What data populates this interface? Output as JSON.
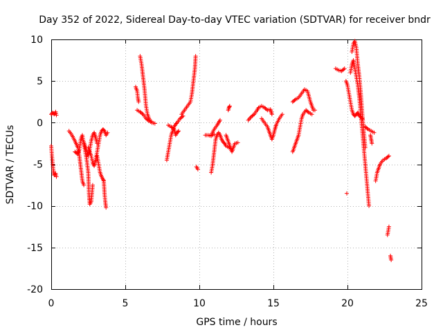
{
  "chart_data": {
    "type": "scatter",
    "title": "Day 352 of 2022, Sidereal Day-to-day VTEC variation (SDTVAR) for receiver bndr",
    "xlabel": "GPS time / hours",
    "ylabel": "SDTVAR / TECUs",
    "xlim": [
      0,
      25
    ],
    "ylim": [
      -20,
      10
    ],
    "x_ticks": [
      0,
      5,
      10,
      15,
      20,
      25
    ],
    "x_tick_labels": [
      "0",
      "5",
      "10",
      "15",
      "20",
      "25"
    ],
    "y_ticks": [
      -20,
      -15,
      -10,
      -5,
      0,
      5,
      10
    ],
    "y_tick_labels": [
      "-20",
      "-15",
      "-10",
      "-5",
      "0",
      "5",
      "10"
    ],
    "grid": true,
    "legend": "none",
    "marker": "+",
    "color": "#ff0000",
    "series": [
      {
        "segments": [
          [
            [
              0.0,
              1.0
            ],
            [
              0.1,
              1.2
            ],
            [
              0.2,
              1.0
            ],
            [
              0.3,
              1.3
            ],
            [
              0.35,
              0.9
            ]
          ],
          [
            [
              0.0,
              -2.8
            ],
            [
              0.05,
              -4.0
            ],
            [
              0.1,
              -5.0
            ],
            [
              0.15,
              -5.8
            ],
            [
              0.2,
              -6.3
            ],
            [
              0.3,
              -6.1
            ],
            [
              0.35,
              -6.5
            ]
          ],
          [
            [
              1.2,
              -1.0
            ],
            [
              1.4,
              -1.5
            ],
            [
              1.6,
              -2.2
            ],
            [
              1.8,
              -3.0
            ],
            [
              1.9,
              -4.0
            ],
            [
              2.0,
              -5.5
            ],
            [
              2.1,
              -7.0
            ],
            [
              2.2,
              -7.5
            ]
          ],
          [
            [
              1.6,
              -3.5
            ],
            [
              1.8,
              -3.8
            ],
            [
              1.9,
              -3.2
            ],
            [
              2.0,
              -2.0
            ],
            [
              2.1,
              -1.5
            ],
            [
              2.2,
              -2.5
            ],
            [
              2.3,
              -3.5
            ],
            [
              2.4,
              -4.5
            ],
            [
              2.5,
              -6.0
            ],
            [
              2.55,
              -8.5
            ],
            [
              2.6,
              -9.8
            ],
            [
              2.7,
              -9.5
            ],
            [
              2.8,
              -7.5
            ]
          ],
          [
            [
              2.2,
              -2.3
            ],
            [
              2.4,
              -3.5
            ],
            [
              2.5,
              -4.0
            ],
            [
              2.6,
              -3.2
            ],
            [
              2.7,
              -2.2
            ],
            [
              2.8,
              -1.5
            ],
            [
              2.9,
              -1.2
            ],
            [
              3.0,
              -1.8
            ],
            [
              3.1,
              -2.5
            ]
          ],
          [
            [
              2.5,
              -3.0
            ],
            [
              2.7,
              -4.0
            ],
            [
              2.8,
              -4.8
            ],
            [
              2.9,
              -5.2
            ],
            [
              3.0,
              -4.5
            ],
            [
              3.1,
              -3.5
            ],
            [
              3.2,
              -2.5
            ],
            [
              3.3,
              -1.5
            ],
            [
              3.4,
              -1.0
            ],
            [
              3.5,
              -0.8
            ],
            [
              3.6,
              -1.0
            ],
            [
              3.7,
              -1.5
            ],
            [
              3.8,
              -1.2
            ]
          ],
          [
            [
              3.1,
              -4.0
            ],
            [
              3.2,
              -5.0
            ],
            [
              3.3,
              -6.0
            ],
            [
              3.4,
              -6.5
            ],
            [
              3.5,
              -6.8
            ],
            [
              3.55,
              -7.0
            ],
            [
              3.6,
              -8.5
            ],
            [
              3.65,
              -9.5
            ],
            [
              3.7,
              -10.2
            ]
          ],
          [
            [
              5.7,
              4.3
            ],
            [
              5.8,
              3.8
            ],
            [
              5.85,
              3.0
            ],
            [
              5.9,
              2.5
            ]
          ],
          [
            [
              5.8,
              1.5
            ],
            [
              6.0,
              1.3
            ],
            [
              6.2,
              1.0
            ],
            [
              6.4,
              0.5
            ],
            [
              6.6,
              0.2
            ],
            [
              6.8,
              0.0
            ],
            [
              7.0,
              -0.1
            ]
          ],
          [
            [
              6.0,
              8.0
            ],
            [
              6.1,
              7.0
            ],
            [
              6.2,
              5.5
            ],
            [
              6.3,
              4.0
            ],
            [
              6.4,
              2.0
            ],
            [
              6.5,
              1.0
            ],
            [
              6.6,
              0.5
            ],
            [
              6.8,
              0.0
            ]
          ],
          [
            [
              7.8,
              -4.5
            ],
            [
              7.9,
              -3.5
            ],
            [
              8.0,
              -2.5
            ],
            [
              8.1,
              -1.5
            ],
            [
              8.2,
              -1.0
            ],
            [
              8.3,
              -0.5
            ],
            [
              8.4,
              -0.2
            ],
            [
              8.5,
              0.0
            ],
            [
              8.7,
              0.5
            ],
            [
              8.9,
              0.8
            ]
          ],
          [
            [
              7.9,
              -0.3
            ],
            [
              8.1,
              -0.5
            ],
            [
              8.3,
              -0.8
            ],
            [
              8.4,
              -1.5
            ],
            [
              8.5,
              -1.2
            ],
            [
              8.6,
              -1.0
            ]
          ],
          [
            [
              8.8,
              1.0
            ],
            [
              9.0,
              1.5
            ],
            [
              9.2,
              2.0
            ],
            [
              9.4,
              2.5
            ],
            [
              9.5,
              3.5
            ],
            [
              9.6,
              5.0
            ],
            [
              9.7,
              6.5
            ],
            [
              9.75,
              8.0
            ]
          ],
          [
            [
              9.8,
              -5.3
            ],
            [
              9.9,
              -5.6
            ]
          ],
          [
            [
              10.4,
              -1.5
            ],
            [
              10.6,
              -1.5
            ],
            [
              10.8,
              -1.6
            ],
            [
              11.0,
              -1.4
            ]
          ],
          [
            [
              10.8,
              -1.5
            ],
            [
              11.0,
              -0.8
            ],
            [
              11.2,
              -0.3
            ],
            [
              11.3,
              0.0
            ],
            [
              11.4,
              0.3
            ]
          ],
          [
            [
              10.8,
              -6.0
            ],
            [
              10.9,
              -5.0
            ],
            [
              11.0,
              -3.5
            ],
            [
              11.1,
              -2.0
            ],
            [
              11.2,
              -1.5
            ],
            [
              11.3,
              -1.2
            ],
            [
              11.4,
              -1.5
            ],
            [
              11.5,
              -2.0
            ],
            [
              11.6,
              -2.3
            ],
            [
              11.7,
              -2.5
            ],
            [
              11.8,
              -2.8
            ],
            [
              12.0,
              -3.0
            ],
            [
              12.2,
              -3.2
            ]
          ],
          [
            [
              11.8,
              -1.5
            ],
            [
              11.9,
              -2.0
            ],
            [
              12.0,
              -2.5
            ],
            [
              12.1,
              -3.0
            ],
            [
              12.2,
              -3.5
            ],
            [
              12.3,
              -3.0
            ],
            [
              12.4,
              -2.5
            ],
            [
              12.6,
              -2.4
            ]
          ],
          [
            [
              11.95,
              1.5
            ],
            [
              12.0,
              1.8
            ],
            [
              12.05,
              2.0
            ]
          ],
          [
            [
              13.3,
              0.3
            ],
            [
              13.5,
              0.7
            ],
            [
              13.7,
              1.0
            ],
            [
              13.9,
              1.5
            ],
            [
              14.0,
              1.8
            ],
            [
              14.2,
              2.0
            ],
            [
              14.4,
              1.8
            ],
            [
              14.6,
              1.5
            ],
            [
              14.8,
              1.6
            ],
            [
              14.9,
              1.0
            ]
          ],
          [
            [
              14.2,
              0.5
            ],
            [
              14.4,
              0.0
            ],
            [
              14.6,
              -0.5
            ],
            [
              14.8,
              -1.5
            ],
            [
              14.9,
              -2.0
            ],
            [
              15.0,
              -1.5
            ],
            [
              15.1,
              -0.8
            ],
            [
              15.2,
              -0.2
            ],
            [
              15.4,
              0.5
            ],
            [
              15.6,
              1.0
            ]
          ],
          [
            [
              16.3,
              2.5
            ],
            [
              16.5,
              2.8
            ],
            [
              16.7,
              3.0
            ],
            [
              16.9,
              3.5
            ],
            [
              17.1,
              4.0
            ],
            [
              17.3,
              3.8
            ],
            [
              17.5,
              2.5
            ],
            [
              17.6,
              2.0
            ],
            [
              17.7,
              1.5
            ],
            [
              17.8,
              1.5
            ]
          ],
          [
            [
              16.3,
              -3.5
            ],
            [
              16.5,
              -2.5
            ],
            [
              16.7,
              -1.5
            ],
            [
              16.8,
              -0.5
            ],
            [
              16.9,
              0.5
            ],
            [
              17.0,
              1.0
            ],
            [
              17.2,
              1.5
            ],
            [
              17.4,
              1.2
            ],
            [
              17.6,
              1.0
            ]
          ],
          [
            [
              19.2,
              6.5
            ],
            [
              19.4,
              6.3
            ],
            [
              19.6,
              6.2
            ],
            [
              19.8,
              6.5
            ]
          ],
          [
            [
              19.95,
              -8.5
            ]
          ],
          [
            [
              19.9,
              5.0
            ],
            [
              20.0,
              4.5
            ],
            [
              20.1,
              3.5
            ],
            [
              20.2,
              2.5
            ],
            [
              20.3,
              1.5
            ],
            [
              20.4,
              1.0
            ],
            [
              20.5,
              0.8
            ],
            [
              20.6,
              1.0
            ],
            [
              20.7,
              1.2
            ],
            [
              20.8,
              0.8
            ],
            [
              21.0,
              0.5
            ]
          ],
          [
            [
              20.2,
              6.0
            ],
            [
              20.3,
              7.0
            ],
            [
              20.4,
              7.5
            ],
            [
              20.5,
              6.5
            ],
            [
              20.6,
              5.5
            ],
            [
              20.7,
              4.5
            ],
            [
              20.8,
              3.0
            ],
            [
              20.9,
              1.0
            ],
            [
              21.0,
              -1.0
            ],
            [
              21.1,
              -3.0
            ],
            [
              21.2,
              -5.0
            ],
            [
              21.3,
              -7.0
            ],
            [
              21.4,
              -9.0
            ],
            [
              21.45,
              -10.0
            ]
          ],
          [
            [
              20.3,
              8.5
            ],
            [
              20.4,
              9.5
            ],
            [
              20.5,
              9.8
            ],
            [
              20.6,
              9.0
            ],
            [
              20.7,
              7.0
            ],
            [
              20.8,
              5.5
            ],
            [
              20.9,
              3.5
            ],
            [
              21.0,
              1.0
            ],
            [
              21.1,
              -1.0
            ],
            [
              21.2,
              -3.0
            ]
          ],
          [
            [
              21.2,
              -0.5
            ],
            [
              21.4,
              -0.8
            ],
            [
              21.6,
              -1.0
            ],
            [
              21.8,
              -1.2
            ]
          ],
          [
            [
              21.55,
              -1.5
            ],
            [
              21.6,
              -2.0
            ],
            [
              21.65,
              -2.5
            ]
          ],
          [
            [
              21.9,
              -7.0
            ],
            [
              22.0,
              -6.0
            ],
            [
              22.1,
              -5.5
            ],
            [
              22.2,
              -5.0
            ],
            [
              22.4,
              -4.5
            ],
            [
              22.6,
              -4.3
            ],
            [
              22.8,
              -4.0
            ]
          ],
          [
            [
              22.7,
              -13.5
            ],
            [
              22.8,
              -12.5
            ]
          ],
          [
            [
              22.9,
              -16.0
            ],
            [
              22.95,
              -16.5
            ]
          ]
        ]
      }
    ]
  }
}
